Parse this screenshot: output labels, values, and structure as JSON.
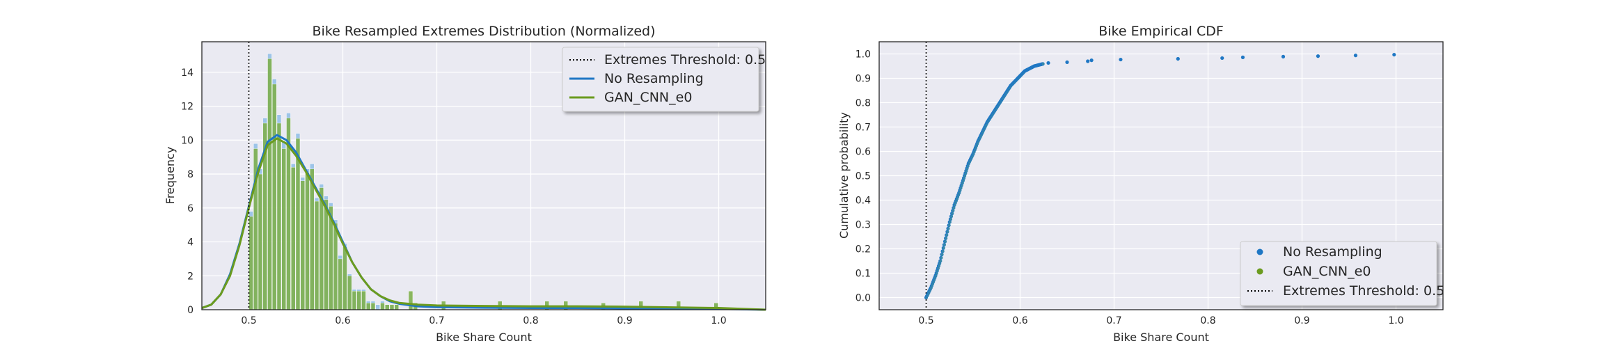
{
  "colors": {
    "background": "#eaeaf2",
    "grid": "#ffffff",
    "no_resampling": "#1f77c4",
    "gan": "#6b9b1f",
    "threshold": "#000000",
    "hist_blue": "#8fbde6",
    "hist_green": "#7fb04f"
  },
  "chart_data": [
    {
      "type": "bar",
      "title": "Bike Resampled Extremes Distribution (Normalized)",
      "xlabel": "Bike Share Count",
      "ylabel": "Frequency",
      "xlim": [
        0.45,
        1.05
      ],
      "ylim": [
        0,
        15.8
      ],
      "xticks": [
        0.5,
        0.6,
        0.7,
        0.8,
        0.9,
        1.0
      ],
      "xtick_labels": [
        "0.5",
        "0.6",
        "0.7",
        "0.8",
        "0.9",
        "1.0"
      ],
      "yticks": [
        0,
        2,
        4,
        6,
        8,
        10,
        12,
        14
      ],
      "ytick_labels": [
        "0",
        "2",
        "4",
        "6",
        "8",
        "10",
        "12",
        "14"
      ],
      "grid": true,
      "legend_position": "top-right",
      "legend": [
        {
          "label": "Extremes Threshold: 0.5",
          "style": "dotted"
        },
        {
          "label": "No Resampling",
          "style": "line-blue"
        },
        {
          "label": "GAN_CNN_e0",
          "style": "line-green"
        }
      ],
      "threshold": 0.5,
      "bin_width": 0.005,
      "histogram_no_resampling": {
        "bin_starts": [
          0.5,
          0.505,
          0.51,
          0.515,
          0.52,
          0.525,
          0.53,
          0.535,
          0.54,
          0.545,
          0.55,
          0.555,
          0.56,
          0.565,
          0.57,
          0.575,
          0.58,
          0.585,
          0.59,
          0.595,
          0.6,
          0.605,
          0.61,
          0.615,
          0.62,
          0.625,
          0.63,
          0.635,
          0.64,
          0.645,
          0.65,
          0.655,
          0.67,
          0.675,
          0.705,
          0.765,
          0.815,
          0.835,
          0.875,
          0.915,
          0.955,
          0.995
        ],
        "values": [
          5.8,
          9.8,
          8.3,
          11.3,
          15.1,
          13.6,
          11.5,
          9.9,
          11.6,
          8.6,
          10.4,
          7.8,
          8.3,
          8.6,
          6.6,
          7.4,
          6.7,
          6.3,
          5.3,
          3.2,
          3.9,
          2.1,
          1.2,
          1.2,
          1.2,
          0.5,
          0.5,
          0.3,
          0.5,
          0.3,
          0.2,
          0.3,
          0.4,
          0.3,
          0.3,
          0.3,
          0.3,
          0.3,
          0.3,
          0.3,
          0.3,
          0.4
        ]
      },
      "histogram_gan": {
        "bin_starts": [
          0.5,
          0.505,
          0.51,
          0.515,
          0.52,
          0.525,
          0.53,
          0.535,
          0.54,
          0.545,
          0.55,
          0.555,
          0.56,
          0.565,
          0.57,
          0.575,
          0.58,
          0.585,
          0.59,
          0.595,
          0.6,
          0.605,
          0.61,
          0.615,
          0.62,
          0.625,
          0.63,
          0.64,
          0.645,
          0.65,
          0.655,
          0.67,
          0.675,
          0.705,
          0.765,
          0.815,
          0.835,
          0.875,
          0.915,
          0.955,
          0.995
        ],
        "values": [
          5.5,
          9.5,
          8.0,
          11.0,
          14.8,
          13.3,
          11.0,
          9.5,
          11.3,
          8.4,
          10.1,
          7.6,
          8.1,
          8.3,
          6.4,
          7.2,
          6.5,
          6.1,
          5.1,
          3.0,
          3.7,
          2.0,
          1.1,
          1.1,
          1.1,
          0.4,
          0.4,
          0.4,
          0.3,
          0.3,
          0.3,
          1.1,
          0.4,
          0.5,
          0.5,
          0.5,
          0.5,
          0.4,
          0.5,
          0.5,
          0.4
        ]
      },
      "kde_no_resampling": {
        "x": [
          0.45,
          0.46,
          0.47,
          0.48,
          0.49,
          0.5,
          0.51,
          0.52,
          0.53,
          0.54,
          0.55,
          0.56,
          0.57,
          0.58,
          0.59,
          0.6,
          0.61,
          0.62,
          0.63,
          0.64,
          0.65,
          0.66,
          0.68,
          0.7,
          0.75,
          0.8,
          0.85,
          0.9,
          0.95,
          1.0,
          1.05
        ],
        "y": [
          0.1,
          0.3,
          0.9,
          2.1,
          3.9,
          6.1,
          8.3,
          9.9,
          10.3,
          10.0,
          9.3,
          8.3,
          7.3,
          6.3,
          5.2,
          4.0,
          2.8,
          1.9,
          1.2,
          0.8,
          0.5,
          0.35,
          0.2,
          0.15,
          0.12,
          0.1,
          0.1,
          0.08,
          0.06,
          0.05,
          0.0
        ]
      },
      "kde_gan": {
        "x": [
          0.45,
          0.46,
          0.47,
          0.48,
          0.49,
          0.5,
          0.51,
          0.52,
          0.53,
          0.54,
          0.55,
          0.56,
          0.57,
          0.58,
          0.59,
          0.6,
          0.61,
          0.62,
          0.63,
          0.64,
          0.65,
          0.66,
          0.68,
          0.7,
          0.75,
          0.8,
          0.85,
          0.9,
          0.95,
          1.0,
          1.05
        ],
        "y": [
          0.1,
          0.3,
          0.9,
          2.0,
          3.8,
          6.0,
          8.1,
          9.7,
          10.1,
          9.8,
          9.1,
          8.2,
          7.2,
          6.2,
          5.1,
          3.9,
          2.8,
          1.9,
          1.2,
          0.8,
          0.55,
          0.4,
          0.3,
          0.25,
          0.22,
          0.2,
          0.2,
          0.18,
          0.14,
          0.1,
          0.0
        ]
      }
    },
    {
      "type": "scatter",
      "title": "Bike Empirical CDF",
      "xlabel": "Bike Share Count",
      "ylabel": "Cumulative probability",
      "xlim": [
        0.45,
        1.05
      ],
      "ylim": [
        -0.05,
        1.05
      ],
      "xticks": [
        0.5,
        0.6,
        0.7,
        0.8,
        0.9,
        1.0
      ],
      "xtick_labels": [
        "0.5",
        "0.6",
        "0.7",
        "0.8",
        "0.9",
        "1.0"
      ],
      "yticks": [
        0.0,
        0.1,
        0.2,
        0.3,
        0.4,
        0.5,
        0.6,
        0.7,
        0.8,
        0.9,
        1.0
      ],
      "ytick_labels": [
        "0.0",
        "0.1",
        "0.2",
        "0.3",
        "0.4",
        "0.5",
        "0.6",
        "0.7",
        "0.8",
        "0.9",
        "1.0"
      ],
      "grid": true,
      "legend_position": "bottom-right",
      "legend": [
        {
          "label": "No Resampling",
          "style": "dot-blue"
        },
        {
          "label": "GAN_CNN_e0",
          "style": "dot-green"
        },
        {
          "label": "Extremes Threshold: 0.5",
          "style": "dotted"
        }
      ],
      "threshold": 0.5,
      "cdf_curve": {
        "x": [
          0.5,
          0.505,
          0.51,
          0.515,
          0.52,
          0.525,
          0.53,
          0.535,
          0.54,
          0.545,
          0.55,
          0.555,
          0.56,
          0.565,
          0.57,
          0.575,
          0.58,
          0.585,
          0.59,
          0.595,
          0.6,
          0.605,
          0.61,
          0.615,
          0.62,
          0.625
        ],
        "y": [
          0.0,
          0.04,
          0.09,
          0.15,
          0.23,
          0.31,
          0.38,
          0.43,
          0.49,
          0.55,
          0.59,
          0.64,
          0.68,
          0.72,
          0.75,
          0.78,
          0.81,
          0.84,
          0.87,
          0.89,
          0.91,
          0.93,
          0.94,
          0.95,
          0.955,
          0.96
        ]
      },
      "tail_points": {
        "x": [
          0.63,
          0.65,
          0.672,
          0.676,
          0.707,
          0.768,
          0.815,
          0.837,
          0.88,
          0.917,
          0.957,
          0.998
        ],
        "y": [
          0.963,
          0.966,
          0.97,
          0.974,
          0.977,
          0.98,
          0.983,
          0.986,
          0.989,
          0.991,
          0.994,
          0.997
        ]
      }
    }
  ]
}
